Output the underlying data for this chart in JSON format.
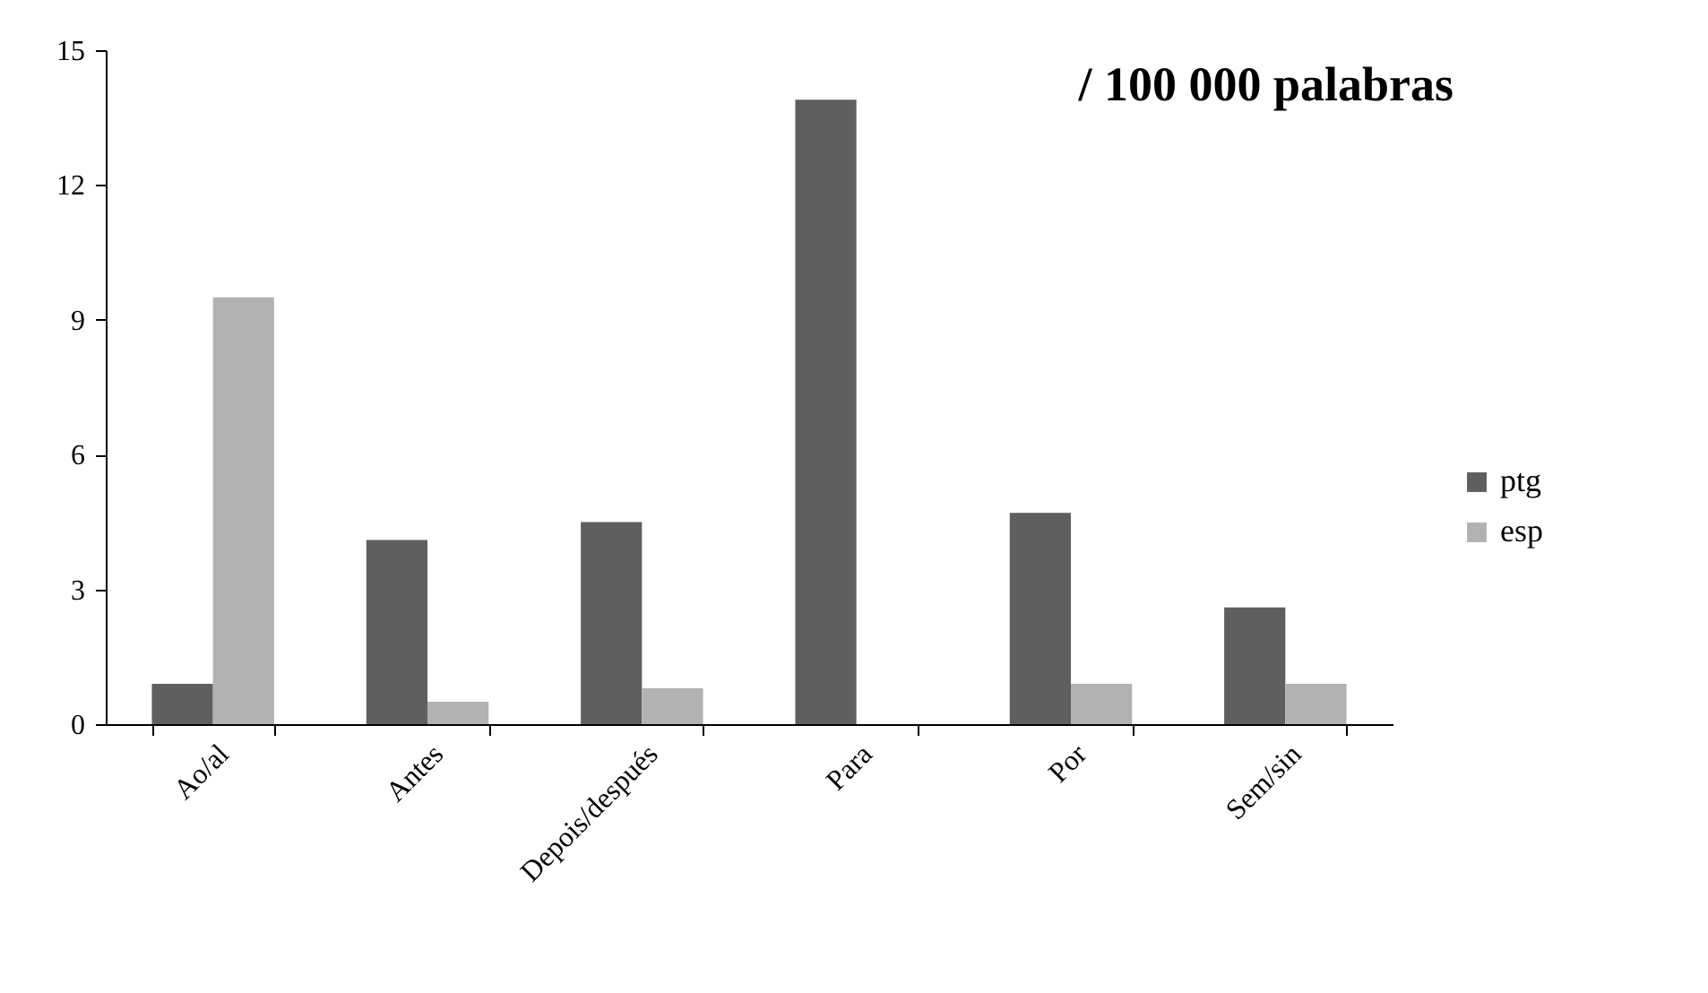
{
  "chart_data": {
    "type": "bar",
    "title": "/ 100 000 palabras",
    "categories": [
      "Ao/al",
      "Antes",
      "Depois/después",
      "Para",
      "Por",
      "Sem/sin"
    ],
    "series": [
      {
        "name": "ptg",
        "color": "#5f5f5f",
        "values": [
          0.9,
          4.1,
          4.5,
          13.9,
          4.7,
          2.6
        ]
      },
      {
        "name": "esp",
        "color": "#b2b2b2",
        "values": [
          9.5,
          0.5,
          0.8,
          0,
          0.9,
          0.9
        ]
      }
    ],
    "ylim": [
      0,
      15
    ],
    "yticks": [
      0,
      3,
      6,
      9,
      12,
      15
    ],
    "grid": false,
    "legend": "right"
  }
}
